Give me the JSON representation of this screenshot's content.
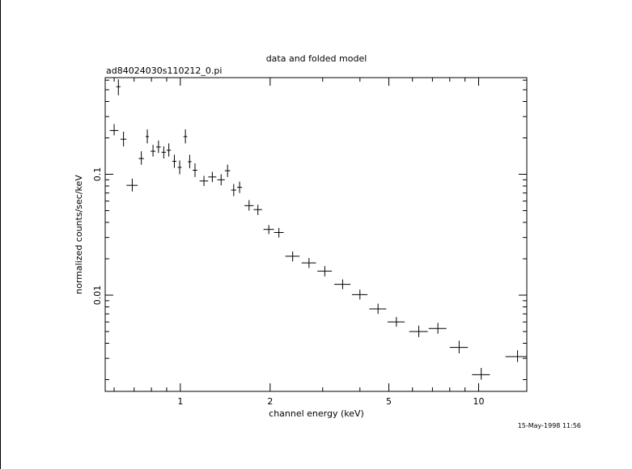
{
  "chart_data": {
    "type": "scatter",
    "title": "data and folded model",
    "subtitle": "ad84024030s110212_0.pi",
    "xlabel": "channel energy (keV)",
    "ylabel": "normalized counts/sec/keV",
    "timestamp": "15-May-1998 11:56",
    "x_scale": "log",
    "y_scale": "log",
    "xlim": [
      0.56,
      14.5
    ],
    "ylim": [
      0.0016,
      0.63
    ],
    "x_ticks": [
      {
        "value": 1,
        "label": "1"
      },
      {
        "value": 2,
        "label": "2"
      },
      {
        "value": 5,
        "label": "5"
      },
      {
        "value": 10,
        "label": "10"
      }
    ],
    "y_ticks": [
      {
        "value": 0.01,
        "label": "0.01"
      },
      {
        "value": 0.1,
        "label": "0.1"
      }
    ],
    "grid": false,
    "legend": "none",
    "points": [
      {
        "x": 0.6,
        "xlo": 0.58,
        "xhi": 0.62,
        "y": 0.23,
        "ylo": 0.21,
        "yhi": 0.26
      },
      {
        "x": 0.62,
        "xlo": 0.61,
        "xhi": 0.63,
        "y": 0.53,
        "ylo": 0.45,
        "yhi": 0.61
      },
      {
        "x": 0.645,
        "xlo": 0.63,
        "xhi": 0.66,
        "y": 0.195,
        "ylo": 0.17,
        "yhi": 0.225
      },
      {
        "x": 0.69,
        "xlo": 0.66,
        "xhi": 0.72,
        "y": 0.081,
        "ylo": 0.072,
        "yhi": 0.092
      },
      {
        "x": 0.74,
        "xlo": 0.725,
        "xhi": 0.755,
        "y": 0.135,
        "ylo": 0.12,
        "yhi": 0.155
      },
      {
        "x": 0.775,
        "xlo": 0.765,
        "xhi": 0.785,
        "y": 0.205,
        "ylo": 0.18,
        "yhi": 0.235
      },
      {
        "x": 0.81,
        "xlo": 0.795,
        "xhi": 0.825,
        "y": 0.155,
        "ylo": 0.14,
        "yhi": 0.175
      },
      {
        "x": 0.845,
        "xlo": 0.83,
        "xhi": 0.86,
        "y": 0.168,
        "ylo": 0.15,
        "yhi": 0.19
      },
      {
        "x": 0.88,
        "xlo": 0.865,
        "xhi": 0.895,
        "y": 0.152,
        "ylo": 0.135,
        "yhi": 0.17
      },
      {
        "x": 0.915,
        "xlo": 0.9,
        "xhi": 0.93,
        "y": 0.158,
        "ylo": 0.14,
        "yhi": 0.18
      },
      {
        "x": 0.955,
        "xlo": 0.94,
        "xhi": 0.97,
        "y": 0.128,
        "ylo": 0.113,
        "yhi": 0.145
      },
      {
        "x": 0.995,
        "xlo": 0.98,
        "xhi": 1.01,
        "y": 0.114,
        "ylo": 0.1,
        "yhi": 0.13
      },
      {
        "x": 1.04,
        "xlo": 1.025,
        "xhi": 1.055,
        "y": 0.205,
        "ylo": 0.18,
        "yhi": 0.235
      },
      {
        "x": 1.075,
        "xlo": 1.06,
        "xhi": 1.09,
        "y": 0.127,
        "ylo": 0.112,
        "yhi": 0.145
      },
      {
        "x": 1.12,
        "xlo": 1.1,
        "xhi": 1.14,
        "y": 0.108,
        "ylo": 0.095,
        "yhi": 0.123
      },
      {
        "x": 1.2,
        "xlo": 1.16,
        "xhi": 1.24,
        "y": 0.088,
        "ylo": 0.08,
        "yhi": 0.097
      },
      {
        "x": 1.28,
        "xlo": 1.24,
        "xhi": 1.32,
        "y": 0.095,
        "ylo": 0.086,
        "yhi": 0.105
      },
      {
        "x": 1.37,
        "xlo": 1.33,
        "xhi": 1.41,
        "y": 0.09,
        "ylo": 0.081,
        "yhi": 0.1
      },
      {
        "x": 1.44,
        "xlo": 1.41,
        "xhi": 1.47,
        "y": 0.107,
        "ylo": 0.095,
        "yhi": 0.12
      },
      {
        "x": 1.51,
        "xlo": 1.48,
        "xhi": 1.54,
        "y": 0.074,
        "ylo": 0.066,
        "yhi": 0.083
      },
      {
        "x": 1.58,
        "xlo": 1.55,
        "xhi": 1.61,
        "y": 0.078,
        "ylo": 0.07,
        "yhi": 0.087
      },
      {
        "x": 1.7,
        "xlo": 1.64,
        "xhi": 1.76,
        "y": 0.055,
        "ylo": 0.05,
        "yhi": 0.061
      },
      {
        "x": 1.82,
        "xlo": 1.76,
        "xhi": 1.88,
        "y": 0.051,
        "ylo": 0.046,
        "yhi": 0.056
      },
      {
        "x": 1.98,
        "xlo": 1.9,
        "xhi": 2.06,
        "y": 0.035,
        "ylo": 0.032,
        "yhi": 0.038
      },
      {
        "x": 2.14,
        "xlo": 2.06,
        "xhi": 2.22,
        "y": 0.033,
        "ylo": 0.03,
        "yhi": 0.036
      },
      {
        "x": 2.38,
        "xlo": 2.25,
        "xhi": 2.51,
        "y": 0.021,
        "ylo": 0.019,
        "yhi": 0.023
      },
      {
        "x": 2.7,
        "xlo": 2.55,
        "xhi": 2.85,
        "y": 0.0185,
        "ylo": 0.0168,
        "yhi": 0.0203
      },
      {
        "x": 3.05,
        "xlo": 2.88,
        "xhi": 3.22,
        "y": 0.0158,
        "ylo": 0.0143,
        "yhi": 0.0174
      },
      {
        "x": 3.5,
        "xlo": 3.28,
        "xhi": 3.72,
        "y": 0.0123,
        "ylo": 0.0112,
        "yhi": 0.0135
      },
      {
        "x": 4.0,
        "xlo": 3.76,
        "xhi": 4.24,
        "y": 0.0101,
        "ylo": 0.0092,
        "yhi": 0.0111
      },
      {
        "x": 4.6,
        "xlo": 4.3,
        "xhi": 4.9,
        "y": 0.0077,
        "ylo": 0.007,
        "yhi": 0.0085
      },
      {
        "x": 5.3,
        "xlo": 4.95,
        "xhi": 5.65,
        "y": 0.006,
        "ylo": 0.0055,
        "yhi": 0.0066
      },
      {
        "x": 6.3,
        "xlo": 5.85,
        "xhi": 6.75,
        "y": 0.005,
        "ylo": 0.0045,
        "yhi": 0.0056
      },
      {
        "x": 7.3,
        "xlo": 6.8,
        "xhi": 7.8,
        "y": 0.0053,
        "ylo": 0.0048,
        "yhi": 0.0059
      },
      {
        "x": 8.6,
        "xlo": 8.0,
        "xhi": 9.2,
        "y": 0.0037,
        "ylo": 0.0033,
        "yhi": 0.0042
      },
      {
        "x": 10.2,
        "xlo": 9.5,
        "xhi": 10.9,
        "y": 0.0022,
        "ylo": 0.002,
        "yhi": 0.0025
      },
      {
        "x": 13.5,
        "xlo": 12.3,
        "xhi": 14.5,
        "y": 0.0031,
        "ylo": 0.0028,
        "yhi": 0.0035
      }
    ]
  }
}
